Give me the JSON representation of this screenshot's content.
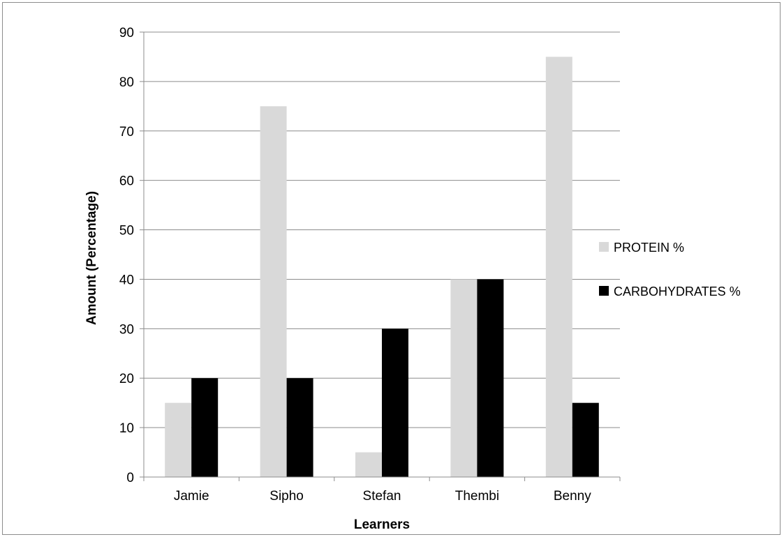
{
  "chart_data": {
    "type": "bar",
    "title": "",
    "xlabel": "Learners",
    "ylabel": "Amount (Percentage)",
    "categories": [
      "Jamie",
      "Sipho",
      "Stefan",
      "Thembi",
      "Benny"
    ],
    "series": [
      {
        "name": "PROTEIN %",
        "values": [
          15,
          75,
          5,
          40,
          85
        ],
        "color": "#d9d9d9"
      },
      {
        "name": "CARBOHYDRATES %",
        "values": [
          20,
          20,
          30,
          40,
          15
        ],
        "color": "#000000"
      }
    ],
    "ylim": [
      0,
      90
    ],
    "yticks": [
      0,
      10,
      20,
      30,
      40,
      50,
      60,
      70,
      80,
      90
    ],
    "grid": "horizontal",
    "legend_position": "right"
  }
}
